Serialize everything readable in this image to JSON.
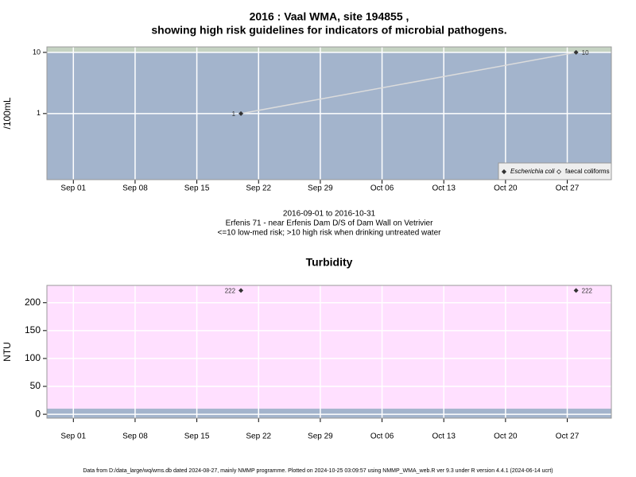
{
  "chart_data": [
    {
      "type": "line",
      "title": [
        "2016 : Vaal WMA, site 194855 ,",
        "showing high risk guidelines for indicators of microbial pathogens."
      ],
      "subtitle": [
        "2016-09-01 to 2016-10-31",
        "Erfenis 71 - near Erfenis Dam D/S of Dam Wall on Vetrivier",
        "<=10 low-med risk; >10 high risk when drinking untreated water"
      ],
      "y_label": "/100mL",
      "log_scale": true,
      "x": [
        "2016-09-20",
        "2016-10-28"
      ],
      "series": [
        {
          "name": "Escherichia coli",
          "color": "#333333",
          "line_color": "#dcdcdc",
          "values": [
            1,
            10
          ]
        },
        {
          "name": "faecal coliforms",
          "color": "#333333",
          "values": [
            null,
            null
          ]
        }
      ],
      "xlim": [
        "2016-08-29",
        "2016-11-01"
      ],
      "xticks": [
        {
          "value": "2016-09-01",
          "label": "Sep 01"
        },
        {
          "value": "2016-09-08",
          "label": "Sep 08"
        },
        {
          "value": "2016-09-15",
          "label": "Sep 15"
        },
        {
          "value": "2016-09-22",
          "label": "Sep 22"
        },
        {
          "value": "2016-09-29",
          "label": "Sep 29"
        },
        {
          "value": "2016-10-06",
          "label": "Oct 06"
        },
        {
          "value": "2016-10-13",
          "label": "Oct 13"
        },
        {
          "value": "2016-10-20",
          "label": "Oct 20"
        },
        {
          "value": "2016-10-27",
          "label": "Oct 27"
        }
      ],
      "ylim": [
        0.083,
        12.3
      ],
      "yticks": [
        1,
        10
      ],
      "threshold": 10,
      "band_above": true,
      "background": "#a3b4cc",
      "band_color": "#c5d3c2",
      "grid": true,
      "legend": "bottom-right"
    },
    {
      "type": "scatter",
      "title": [
        "Turbidity"
      ],
      "y_label": "NTU",
      "log_scale": false,
      "x": [
        "2016-09-20",
        "2016-10-28"
      ],
      "series": [
        {
          "name": "Turbidity",
          "color": "#333333",
          "values": [
            222,
            222
          ]
        }
      ],
      "xlim": [
        "2016-08-29",
        "2016-11-01"
      ],
      "xticks": [
        {
          "value": "2016-09-01",
          "label": "Sep 01"
        },
        {
          "value": "2016-09-08",
          "label": "Sep 08"
        },
        {
          "value": "2016-09-15",
          "label": "Sep 15"
        },
        {
          "value": "2016-09-22",
          "label": "Sep 22"
        },
        {
          "value": "2016-09-29",
          "label": "Sep 29"
        },
        {
          "value": "2016-10-06",
          "label": "Oct 06"
        },
        {
          "value": "2016-10-13",
          "label": "Oct 13"
        },
        {
          "value": "2016-10-20",
          "label": "Oct 20"
        },
        {
          "value": "2016-10-27",
          "label": "Oct 27"
        }
      ],
      "ylim": [
        -7,
        231
      ],
      "yticks": [
        0,
        50,
        100,
        150,
        200
      ],
      "threshold": 10,
      "band_above": false,
      "background": "#ffe0ff",
      "band_color": "#a3b4cc",
      "grid": true
    }
  ],
  "footer": "Data from D:/data_large/wq/wms.db dated 2024-08-27, mainly NMMP programme. Plotted on 2024-10-25 03:09:57 using NMMP_WMA_web.R ver 9.3 under R version 4.4.1 (2024-06-14 ucrt)"
}
